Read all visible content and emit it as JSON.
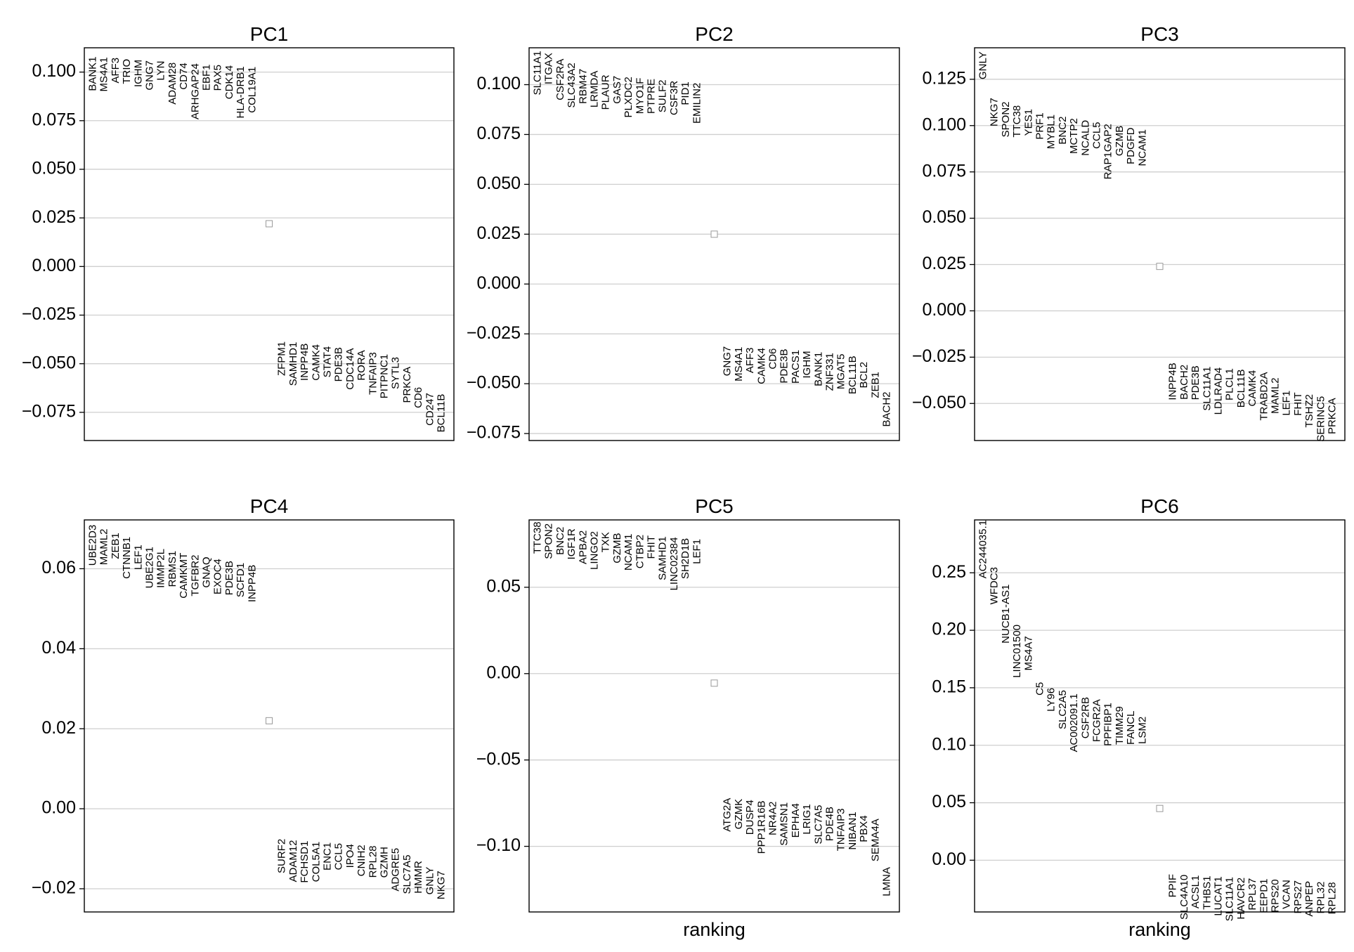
{
  "chart_data": [
    {
      "type": "scatter",
      "title": "PC1",
      "xlabel": "",
      "ylabel": "",
      "ylim": [
        -0.0895,
        0.1125
      ],
      "yticks": [
        0.1,
        0.075,
        0.05,
        0.025,
        0.0,
        -0.025,
        -0.05,
        -0.075
      ],
      "ytick_labels": [
        "0.100",
        "0.075",
        "0.050",
        "0.025",
        "0.000",
        "−0.025",
        "−0.050",
        "−0.075"
      ],
      "grid": true,
      "center_marker": 0.022,
      "top_genes": [
        {
          "gene": "BANK1",
          "value": 0.108
        },
        {
          "gene": "MS4A1",
          "value": 0.1077
        },
        {
          "gene": "AFF3",
          "value": 0.1075
        },
        {
          "gene": "TRIO",
          "value": 0.1068
        },
        {
          "gene": "IGHM",
          "value": 0.1064
        },
        {
          "gene": "GNG7",
          "value": 0.106
        },
        {
          "gene": "LYN",
          "value": 0.1058
        },
        {
          "gene": "ADAM28",
          "value": 0.105
        },
        {
          "gene": "CD74",
          "value": 0.1048
        },
        {
          "gene": "ARHGAP24",
          "value": 0.1045
        },
        {
          "gene": "EBF1",
          "value": 0.104
        },
        {
          "gene": "PAX5",
          "value": 0.1038
        },
        {
          "gene": "CDK14",
          "value": 0.1035
        },
        {
          "gene": "HLA-DRB1",
          "value": 0.103
        },
        {
          "gene": "COL19A1",
          "value": 0.1028
        }
      ],
      "bottom_genes": [
        {
          "gene": "ZFPM1",
          "value": -0.0385
        },
        {
          "gene": "SAMHD1",
          "value": -0.0388
        },
        {
          "gene": "INPP4B",
          "value": -0.0395
        },
        {
          "gene": "CAMK4",
          "value": -0.04
        },
        {
          "gene": "STAT4",
          "value": -0.041
        },
        {
          "gene": "PDE3B",
          "value": -0.0415
        },
        {
          "gene": "CDC14A",
          "value": -0.042
        },
        {
          "gene": "RORA",
          "value": -0.043
        },
        {
          "gene": "TNFAIP3",
          "value": -0.044
        },
        {
          "gene": "PITPNC1",
          "value": -0.045
        },
        {
          "gene": "SYTL3",
          "value": -0.0465
        },
        {
          "gene": "PRKCA",
          "value": -0.0515
        },
        {
          "gene": "CD6",
          "value": -0.062
        },
        {
          "gene": "CD247",
          "value": -0.065
        },
        {
          "gene": "BCL11B",
          "value": -0.0655
        }
      ]
    },
    {
      "type": "scatter",
      "title": "PC2",
      "xlabel": "",
      "ylabel": "",
      "ylim": [
        -0.0785,
        0.1185
      ],
      "yticks": [
        0.1,
        0.075,
        0.05,
        0.025,
        0.0,
        -0.025,
        -0.05,
        -0.075
      ],
      "ytick_labels": [
        "0.100",
        "0.075",
        "0.050",
        "0.025",
        "0.000",
        "−0.025",
        "−0.050",
        "−0.075"
      ],
      "grid": true,
      "center_marker": 0.025,
      "top_genes": [
        {
          "gene": "SLC11A1",
          "value": 0.117
        },
        {
          "gene": "ITGAX",
          "value": 0.116
        },
        {
          "gene": "CSF2RA",
          "value": 0.113
        },
        {
          "gene": "SLC43A2",
          "value": 0.111
        },
        {
          "gene": "RBM47",
          "value": 0.108
        },
        {
          "gene": "LRMDA",
          "value": 0.107
        },
        {
          "gene": "PLAUR",
          "value": 0.105
        },
        {
          "gene": "GAS7",
          "value": 0.1045
        },
        {
          "gene": "PLXDC2",
          "value": 0.104
        },
        {
          "gene": "MYO1F",
          "value": 0.1035
        },
        {
          "gene": "PTPRE",
          "value": 0.103
        },
        {
          "gene": "SULF2",
          "value": 0.1025
        },
        {
          "gene": "CSF3R",
          "value": 0.102
        },
        {
          "gene": "PID1",
          "value": 0.1015
        },
        {
          "gene": "EMILIN2",
          "value": 0.101
        }
      ],
      "bottom_genes": [
        {
          "gene": "GNG7",
          "value": -0.0312
        },
        {
          "gene": "MS4A1",
          "value": -0.0315
        },
        {
          "gene": "AFF3",
          "value": -0.0318
        },
        {
          "gene": "CAMK4",
          "value": -0.032
        },
        {
          "gene": "CD6",
          "value": -0.0322
        },
        {
          "gene": "PDE3B",
          "value": -0.0325
        },
        {
          "gene": "PACS1",
          "value": -0.033
        },
        {
          "gene": "IGHM",
          "value": -0.0335
        },
        {
          "gene": "BANK1",
          "value": -0.034
        },
        {
          "gene": "ZNF331",
          "value": -0.0345
        },
        {
          "gene": "MGAT5",
          "value": -0.035
        },
        {
          "gene": "BCL11B",
          "value": -0.036
        },
        {
          "gene": "BCL2",
          "value": -0.039
        },
        {
          "gene": "ZEB1",
          "value": -0.044
        },
        {
          "gene": "BACH2",
          "value": -0.054
        }
      ]
    },
    {
      "type": "scatter",
      "title": "PC3",
      "xlabel": "",
      "ylabel": "",
      "ylim": [
        -0.07,
        0.142
      ],
      "yticks": [
        0.125,
        0.1,
        0.075,
        0.05,
        0.025,
        0.0,
        -0.025,
        -0.05
      ],
      "ytick_labels": [
        "0.125",
        "0.100",
        "0.075",
        "0.050",
        "0.025",
        "0.000",
        "−0.025",
        "−0.050"
      ],
      "grid": true,
      "center_marker": 0.024,
      "top_genes": [
        {
          "gene": "GNLY",
          "value": 0.14
        },
        {
          "gene": "NKG7",
          "value": 0.115
        },
        {
          "gene": "SPON2",
          "value": 0.113
        },
        {
          "gene": "TTC38",
          "value": 0.111
        },
        {
          "gene": "YES1",
          "value": 0.109
        },
        {
          "gene": "PRF1",
          "value": 0.107
        },
        {
          "gene": "MYBL1",
          "value": 0.106
        },
        {
          "gene": "BNC2",
          "value": 0.105
        },
        {
          "gene": "MCTP2",
          "value": 0.104
        },
        {
          "gene": "NCALD",
          "value": 0.103
        },
        {
          "gene": "CCL5",
          "value": 0.102
        },
        {
          "gene": "RAP1GAP2",
          "value": 0.101
        },
        {
          "gene": "GZMB",
          "value": 0.1
        },
        {
          "gene": "PDGFD",
          "value": 0.099
        },
        {
          "gene": "NCAM1",
          "value": 0.098
        }
      ],
      "bottom_genes": [
        {
          "gene": "INPP4B",
          "value": -0.028
        },
        {
          "gene": "BACH2",
          "value": -0.029
        },
        {
          "gene": "PDE3B",
          "value": -0.0295
        },
        {
          "gene": "SLC11A1",
          "value": -0.03
        },
        {
          "gene": "LDLRAD4",
          "value": -0.0305
        },
        {
          "gene": "PLCL1",
          "value": -0.031
        },
        {
          "gene": "BCL11B",
          "value": -0.0315
        },
        {
          "gene": "CAMK4",
          "value": -0.032
        },
        {
          "gene": "TRABD2A",
          "value": -0.033
        },
        {
          "gene": "MAML2",
          "value": -0.036
        },
        {
          "gene": "LEF1",
          "value": -0.043
        },
        {
          "gene": "FHIT",
          "value": -0.044
        },
        {
          "gene": "TSHZ2",
          "value": -0.045
        },
        {
          "gene": "SERINC5",
          "value": -0.046
        },
        {
          "gene": "PRKCA",
          "value": -0.047
        }
      ]
    },
    {
      "type": "scatter",
      "title": "PC4",
      "xlabel": "",
      "ylabel": "",
      "ylim": [
        -0.0258,
        0.0722
      ],
      "yticks": [
        0.06,
        0.04,
        0.02,
        0.0,
        -0.02
      ],
      "ytick_labels": [
        "0.06",
        "0.04",
        "0.02",
        "0.00",
        "−0.02"
      ],
      "grid": true,
      "center_marker": 0.022,
      "top_genes": [
        {
          "gene": "UBE2D3",
          "value": 0.071
        },
        {
          "gene": "MAML2",
          "value": 0.07
        },
        {
          "gene": "ZEB1",
          "value": 0.069
        },
        {
          "gene": "CTNNB1",
          "value": 0.068
        },
        {
          "gene": "LEF1",
          "value": 0.066
        },
        {
          "gene": "UBE2G1",
          "value": 0.0655
        },
        {
          "gene": "IMMP2L",
          "value": 0.065
        },
        {
          "gene": "RBMS1",
          "value": 0.0645
        },
        {
          "gene": "CAMKMT",
          "value": 0.064
        },
        {
          "gene": "TGFBR2",
          "value": 0.0635
        },
        {
          "gene": "GNAQ",
          "value": 0.063
        },
        {
          "gene": "EXOC4",
          "value": 0.0625
        },
        {
          "gene": "PDE3B",
          "value": 0.062
        },
        {
          "gene": "SCFD1",
          "value": 0.0615
        },
        {
          "gene": "INPP4B",
          "value": 0.061
        }
      ],
      "bottom_genes": [
        {
          "gene": "SURF2",
          "value": -0.0075
        },
        {
          "gene": "ADAM12",
          "value": -0.0078
        },
        {
          "gene": "FCHSD1",
          "value": -0.008
        },
        {
          "gene": "COL5A1",
          "value": -0.0082
        },
        {
          "gene": "ENC1",
          "value": -0.0084
        },
        {
          "gene": "CCL5",
          "value": -0.0086
        },
        {
          "gene": "IPO4",
          "value": -0.0088
        },
        {
          "gene": "CNIH2",
          "value": -0.009
        },
        {
          "gene": "RPL28",
          "value": -0.0092
        },
        {
          "gene": "GZMH",
          "value": -0.0095
        },
        {
          "gene": "ADGRE5",
          "value": -0.0098
        },
        {
          "gene": "SLC7A5",
          "value": -0.0115
        },
        {
          "gene": "HMMR",
          "value": -0.013
        },
        {
          "gene": "GNLY",
          "value": -0.0145
        },
        {
          "gene": "NKG7",
          "value": -0.0155
        }
      ]
    },
    {
      "type": "scatter",
      "title": "PC5",
      "xlabel": "ranking",
      "ylabel": "",
      "ylim": [
        -0.138,
        0.089
      ],
      "yticks": [
        0.05,
        0.0,
        -0.05,
        -0.1
      ],
      "ytick_labels": [
        "0.05",
        "0.00",
        "−0.05",
        "−0.10"
      ],
      "grid": true,
      "center_marker": -0.0055,
      "top_genes": [
        {
          "gene": "TTC38",
          "value": 0.088
        },
        {
          "gene": "SPON2",
          "value": 0.087
        },
        {
          "gene": "BNC2",
          "value": 0.085
        },
        {
          "gene": "IGF1R",
          "value": 0.084
        },
        {
          "gene": "APBA2",
          "value": 0.083
        },
        {
          "gene": "LINGO2",
          "value": 0.0825
        },
        {
          "gene": "TXK",
          "value": 0.082
        },
        {
          "gene": "GZMB",
          "value": 0.0815
        },
        {
          "gene": "NCAM1",
          "value": 0.081
        },
        {
          "gene": "CTBP2",
          "value": 0.0805
        },
        {
          "gene": "FHIT",
          "value": 0.08
        },
        {
          "gene": "SAMHD1",
          "value": 0.0795
        },
        {
          "gene": "LINC02384",
          "value": 0.079
        },
        {
          "gene": "SH2D1B",
          "value": 0.0785
        },
        {
          "gene": "LEF1",
          "value": 0.078
        }
      ],
      "bottom_genes": [
        {
          "gene": "ATG2A",
          "value": -0.072
        },
        {
          "gene": "GZMK",
          "value": -0.0725
        },
        {
          "gene": "DUSP4",
          "value": -0.073
        },
        {
          "gene": "PPP1R16B",
          "value": -0.0735
        },
        {
          "gene": "NR4A2",
          "value": -0.074
        },
        {
          "gene": "SAMSN1",
          "value": -0.0745
        },
        {
          "gene": "EPHA4",
          "value": -0.075
        },
        {
          "gene": "LRIG1",
          "value": -0.0755
        },
        {
          "gene": "SLC7A5",
          "value": -0.076
        },
        {
          "gene": "PDE4B",
          "value": -0.077
        },
        {
          "gene": "TNFAIP3",
          "value": -0.078
        },
        {
          "gene": "NIBAN1",
          "value": -0.08
        },
        {
          "gene": "PBX4",
          "value": -0.082
        },
        {
          "gene": "SEMA4A",
          "value": -0.084
        },
        {
          "gene": "LMNA",
          "value": -0.112
        }
      ]
    },
    {
      "type": "scatter",
      "title": "PC6",
      "xlabel": "ranking",
      "ylabel": "",
      "ylim": [
        -0.045,
        0.296
      ],
      "yticks": [
        0.25,
        0.2,
        0.15,
        0.1,
        0.05,
        0.0
      ],
      "ytick_labels": [
        "0.25",
        "0.20",
        "0.15",
        "0.10",
        "0.05",
        "0.00"
      ],
      "grid": true,
      "center_marker": 0.045,
      "top_genes": [
        {
          "gene": "AC244035.1",
          "value": 0.296
        },
        {
          "gene": "WFDC3",
          "value": 0.255
        },
        {
          "gene": "NUCB1-AS1",
          "value": 0.24
        },
        {
          "gene": "LINC01500",
          "value": 0.205
        },
        {
          "gene": "MS4A7",
          "value": 0.195
        },
        {
          "gene": "C5",
          "value": 0.155
        },
        {
          "gene": "LY96",
          "value": 0.15
        },
        {
          "gene": "SLC2A5",
          "value": 0.148
        },
        {
          "gene": "AC002091.1",
          "value": 0.145
        },
        {
          "gene": "CSF2RB",
          "value": 0.142
        },
        {
          "gene": "FCGR2A",
          "value": 0.14
        },
        {
          "gene": "PPFIBP1",
          "value": 0.137
        },
        {
          "gene": "TIMM29",
          "value": 0.134
        },
        {
          "gene": "FANCL",
          "value": 0.13
        },
        {
          "gene": "LSM2",
          "value": 0.125
        }
      ],
      "bottom_genes": [
        {
          "gene": "PPIF",
          "value": -0.012
        },
        {
          "gene": "SLC4A10",
          "value": -0.0125
        },
        {
          "gene": "ACSL1",
          "value": -0.013
        },
        {
          "gene": "THBS1",
          "value": -0.0135
        },
        {
          "gene": "LUCAT1",
          "value": -0.014
        },
        {
          "gene": "SLC11A1",
          "value": -0.0145
        },
        {
          "gene": "HAVCR2",
          "value": -0.015
        },
        {
          "gene": "RPL37",
          "value": -0.0155
        },
        {
          "gene": "EEPD1",
          "value": -0.016
        },
        {
          "gene": "RPS20",
          "value": -0.0165
        },
        {
          "gene": "VCAN",
          "value": -0.017
        },
        {
          "gene": "RPS27",
          "value": -0.0175
        },
        {
          "gene": "ANPEP",
          "value": -0.018
        },
        {
          "gene": "RPL32",
          "value": -0.0185
        },
        {
          "gene": "RPL28",
          "value": -0.019
        }
      ]
    }
  ]
}
